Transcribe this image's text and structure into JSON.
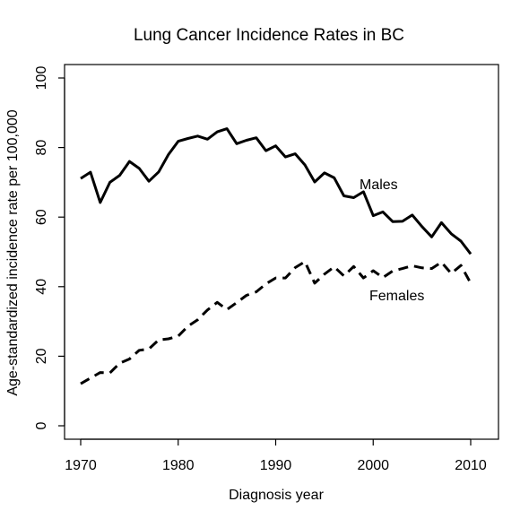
{
  "chart_data": {
    "type": "line",
    "title": "Lung Cancer Incidence Rates in BC",
    "xlabel": "Diagnosis year",
    "ylabel": "Age-standardized incidence rate per 100,000",
    "xlim": [
      1970,
      2010
    ],
    "ylim": [
      0,
      100
    ],
    "x_ticks": [
      1970,
      1980,
      1990,
      2000,
      2010
    ],
    "y_ticks": [
      0,
      20,
      40,
      60,
      80,
      100
    ],
    "grid": false,
    "legend": "none",
    "x": [
      1970,
      1971,
      1972,
      1973,
      1974,
      1975,
      1976,
      1977,
      1978,
      1979,
      1980,
      1981,
      1982,
      1983,
      1984,
      1985,
      1986,
      1987,
      1988,
      1989,
      1990,
      1991,
      1992,
      1993,
      1994,
      1995,
      1996,
      1997,
      1998,
      1999,
      2000,
      2001,
      2002,
      2003,
      2004,
      2005,
      2006,
      2007,
      2008,
      2009,
      2010
    ],
    "series": [
      {
        "name": "Males",
        "line_style": "solid",
        "color": "#000000",
        "values": [
          71.1,
          72.9,
          64.2,
          70.0,
          72.0,
          76.0,
          74.0,
          70.3,
          73.0,
          78.0,
          81.8,
          82.6,
          83.3,
          82.4,
          84.5,
          85.4,
          81.1,
          82.1,
          82.8,
          79.1,
          80.5,
          77.3,
          78.2,
          75.0,
          70.1,
          72.7,
          71.3,
          66.1,
          65.6,
          67.3,
          60.4,
          61.5,
          58.7,
          58.8,
          60.6,
          57.3,
          54.3,
          58.4,
          55.2,
          53.1,
          49.4
        ]
      },
      {
        "name": "Females",
        "line_style": "dashed",
        "color": "#000000",
        "values": [
          12.1,
          13.7,
          15.3,
          15.2,
          18.0,
          19.2,
          21.7,
          22.1,
          24.7,
          25.0,
          25.8,
          28.6,
          30.5,
          33.3,
          35.5,
          33.4,
          35.4,
          37.5,
          38.5,
          40.8,
          42.5,
          42.5,
          45.5,
          47.2,
          41.0,
          43.6,
          45.7,
          43.1,
          45.8,
          42.5,
          44.6,
          42.6,
          44.5,
          45.2,
          46.0,
          45.4,
          45.2,
          47.0,
          43.8,
          46.1,
          41.0
        ]
      }
    ]
  }
}
